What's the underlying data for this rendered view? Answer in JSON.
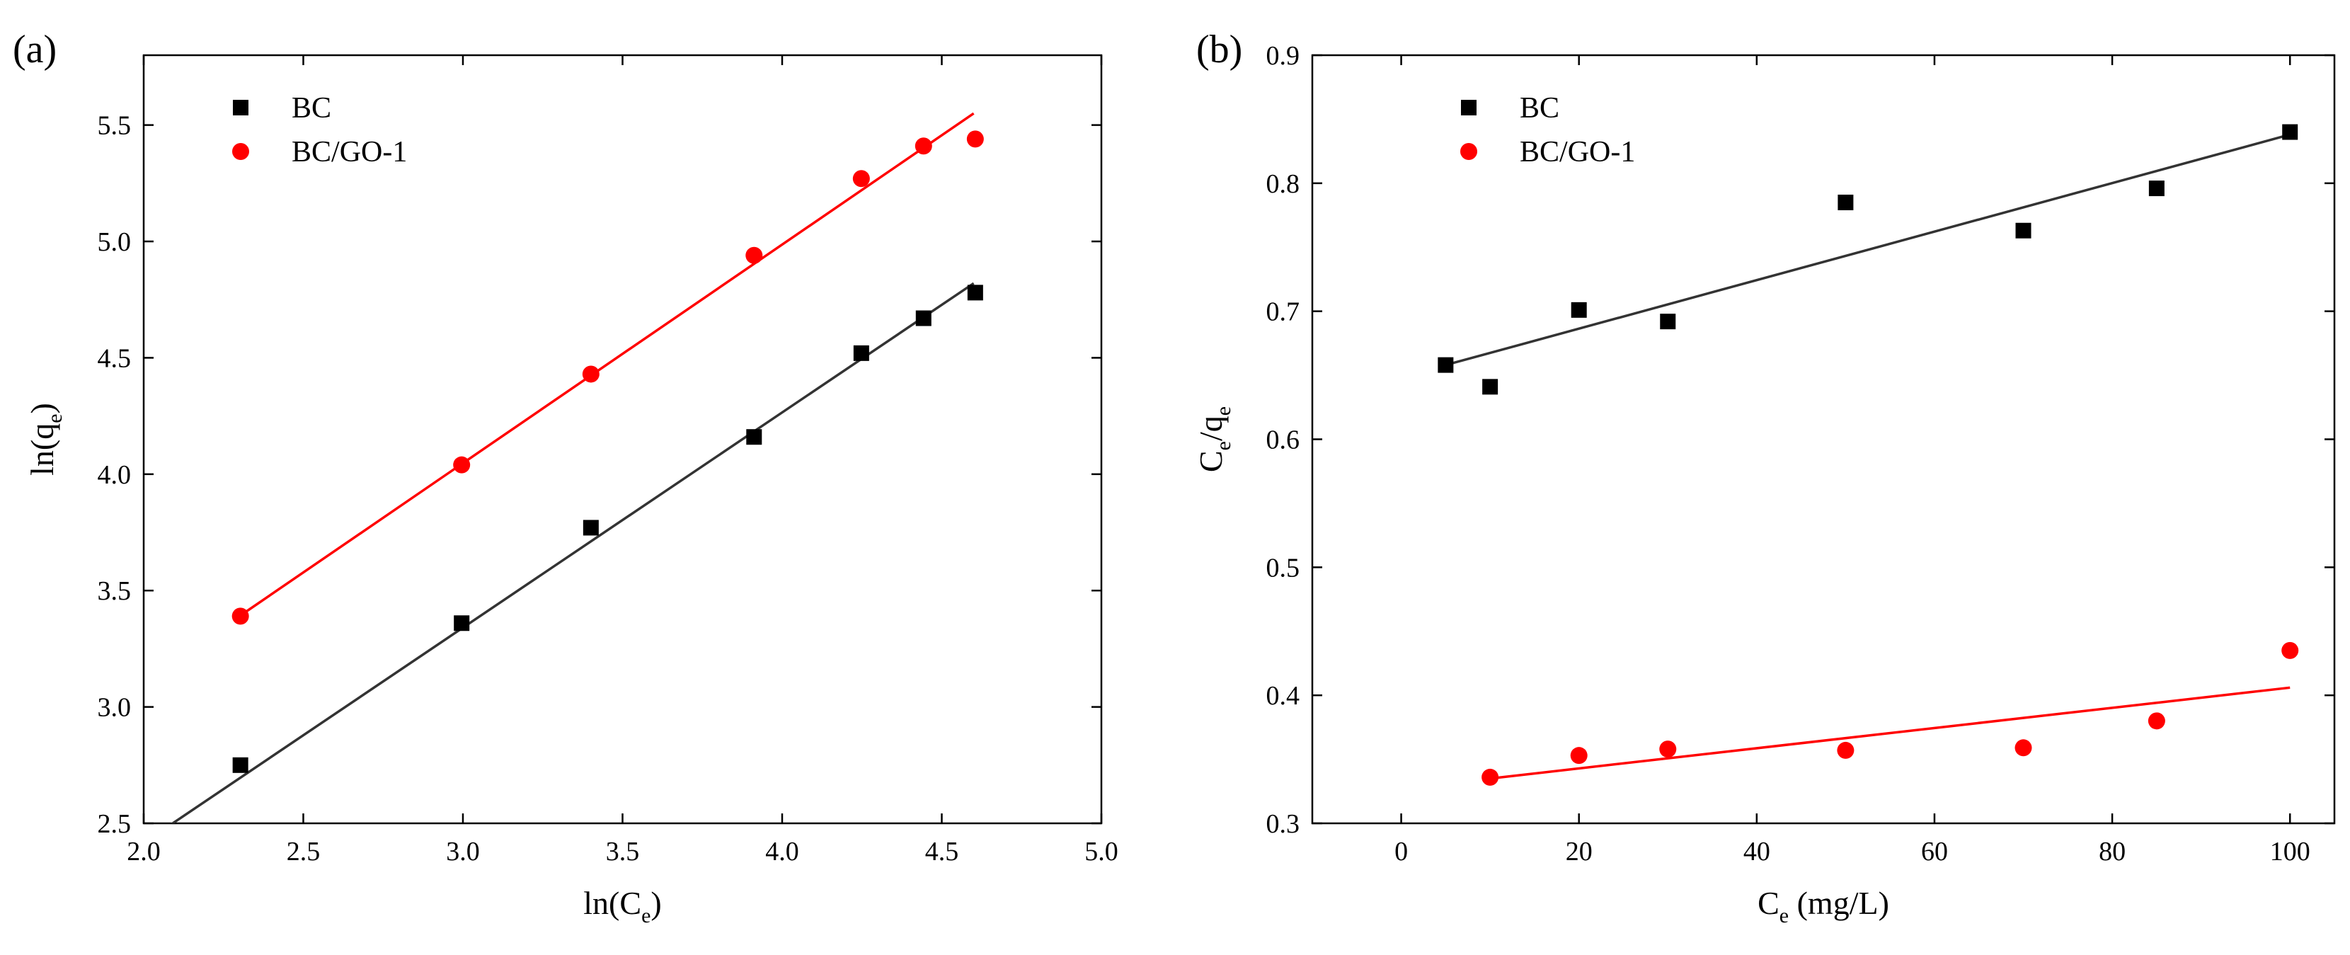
{
  "chart_data": [
    {
      "type": "scatter",
      "panel_label": "(a)",
      "xlabel": {
        "main": "ln(C",
        "sub": "e",
        "tail": ")"
      },
      "ylabel": {
        "main": "ln(q",
        "sub": "e",
        "tail": ")"
      },
      "xlim": [
        2.0,
        5.0
      ],
      "ylim": [
        2.5,
        5.8
      ],
      "xticks": [
        2.0,
        2.5,
        3.0,
        3.5,
        4.0,
        4.5,
        5.0
      ],
      "yticks": [
        2.5,
        3.0,
        3.5,
        4.0,
        4.5,
        5.0,
        5.5
      ],
      "x_tick_labels": [
        "2.0",
        "2.5",
        "3.0",
        "3.5",
        "4.0",
        "4.5",
        "5.0"
      ],
      "y_tick_labels": [
        "2.5",
        "3.0",
        "3.5",
        "4.0",
        "4.5",
        "5.0",
        "5.5"
      ],
      "legend_position": "top-left",
      "series": [
        {
          "name": "BC",
          "marker": "square",
          "color": "#000000",
          "line_color": "#333333",
          "x": [
            2.303,
            2.996,
            3.401,
            3.912,
            4.248,
            4.443,
            4.605
          ],
          "y": [
            2.75,
            3.36,
            3.77,
            4.16,
            4.52,
            4.67,
            4.78
          ],
          "fit": {
            "x": [
              2.08,
              4.6
            ],
            "y": [
              2.49,
              4.82
            ]
          }
        },
        {
          "name": "BC/GO-1",
          "marker": "circle",
          "color": "#ff0000",
          "line_color": "#ff0000",
          "x": [
            2.303,
            2.996,
            3.401,
            3.912,
            4.248,
            4.443,
            4.605
          ],
          "y": [
            3.39,
            4.04,
            4.43,
            4.94,
            5.27,
            5.41,
            5.44
          ],
          "fit": {
            "x": [
              2.3,
              4.6
            ],
            "y": [
              3.39,
              5.55
            ]
          }
        }
      ]
    },
    {
      "type": "scatter",
      "panel_label": "(b)",
      "xlabel": {
        "main": "C",
        "sub": "e",
        "tail": " (mg/L)"
      },
      "ylabel": {
        "main": "C",
        "sub": "e",
        "mid": "/q",
        "sub2": "e",
        "tail": ""
      },
      "xlim": [
        -10,
        105
      ],
      "ylim": [
        0.3,
        0.9
      ],
      "xticks": [
        0,
        20,
        40,
        60,
        80,
        100
      ],
      "yticks": [
        0.3,
        0.4,
        0.5,
        0.6,
        0.7,
        0.8,
        0.9
      ],
      "x_tick_labels": [
        "0",
        "20",
        "40",
        "60",
        "80",
        "100"
      ],
      "y_tick_labels": [
        "0.3",
        "0.4",
        "0.5",
        "0.6",
        "0.7",
        "0.8",
        "0.9"
      ],
      "legend_position": "top-left",
      "series": [
        {
          "name": "BC",
          "marker": "square",
          "color": "#000000",
          "line_color": "#333333",
          "x": [
            5,
            10,
            20,
            30,
            50,
            70,
            85,
            100
          ],
          "y": [
            0.658,
            0.641,
            0.701,
            0.692,
            0.785,
            0.763,
            0.796,
            0.84
          ],
          "fit": {
            "x": [
              5,
              100
            ],
            "y": [
              0.658,
              0.838
            ]
          }
        },
        {
          "name": "BC/GO-1",
          "marker": "circle",
          "color": "#ff0000",
          "line_color": "#ff0000",
          "x": [
            10,
            20,
            30,
            50,
            70,
            85,
            100
          ],
          "y": [
            0.336,
            0.353,
            0.358,
            0.357,
            0.359,
            0.38,
            0.435
          ],
          "fit": {
            "x": [
              10,
              100
            ],
            "y": [
              0.335,
              0.406
            ]
          }
        }
      ]
    }
  ]
}
